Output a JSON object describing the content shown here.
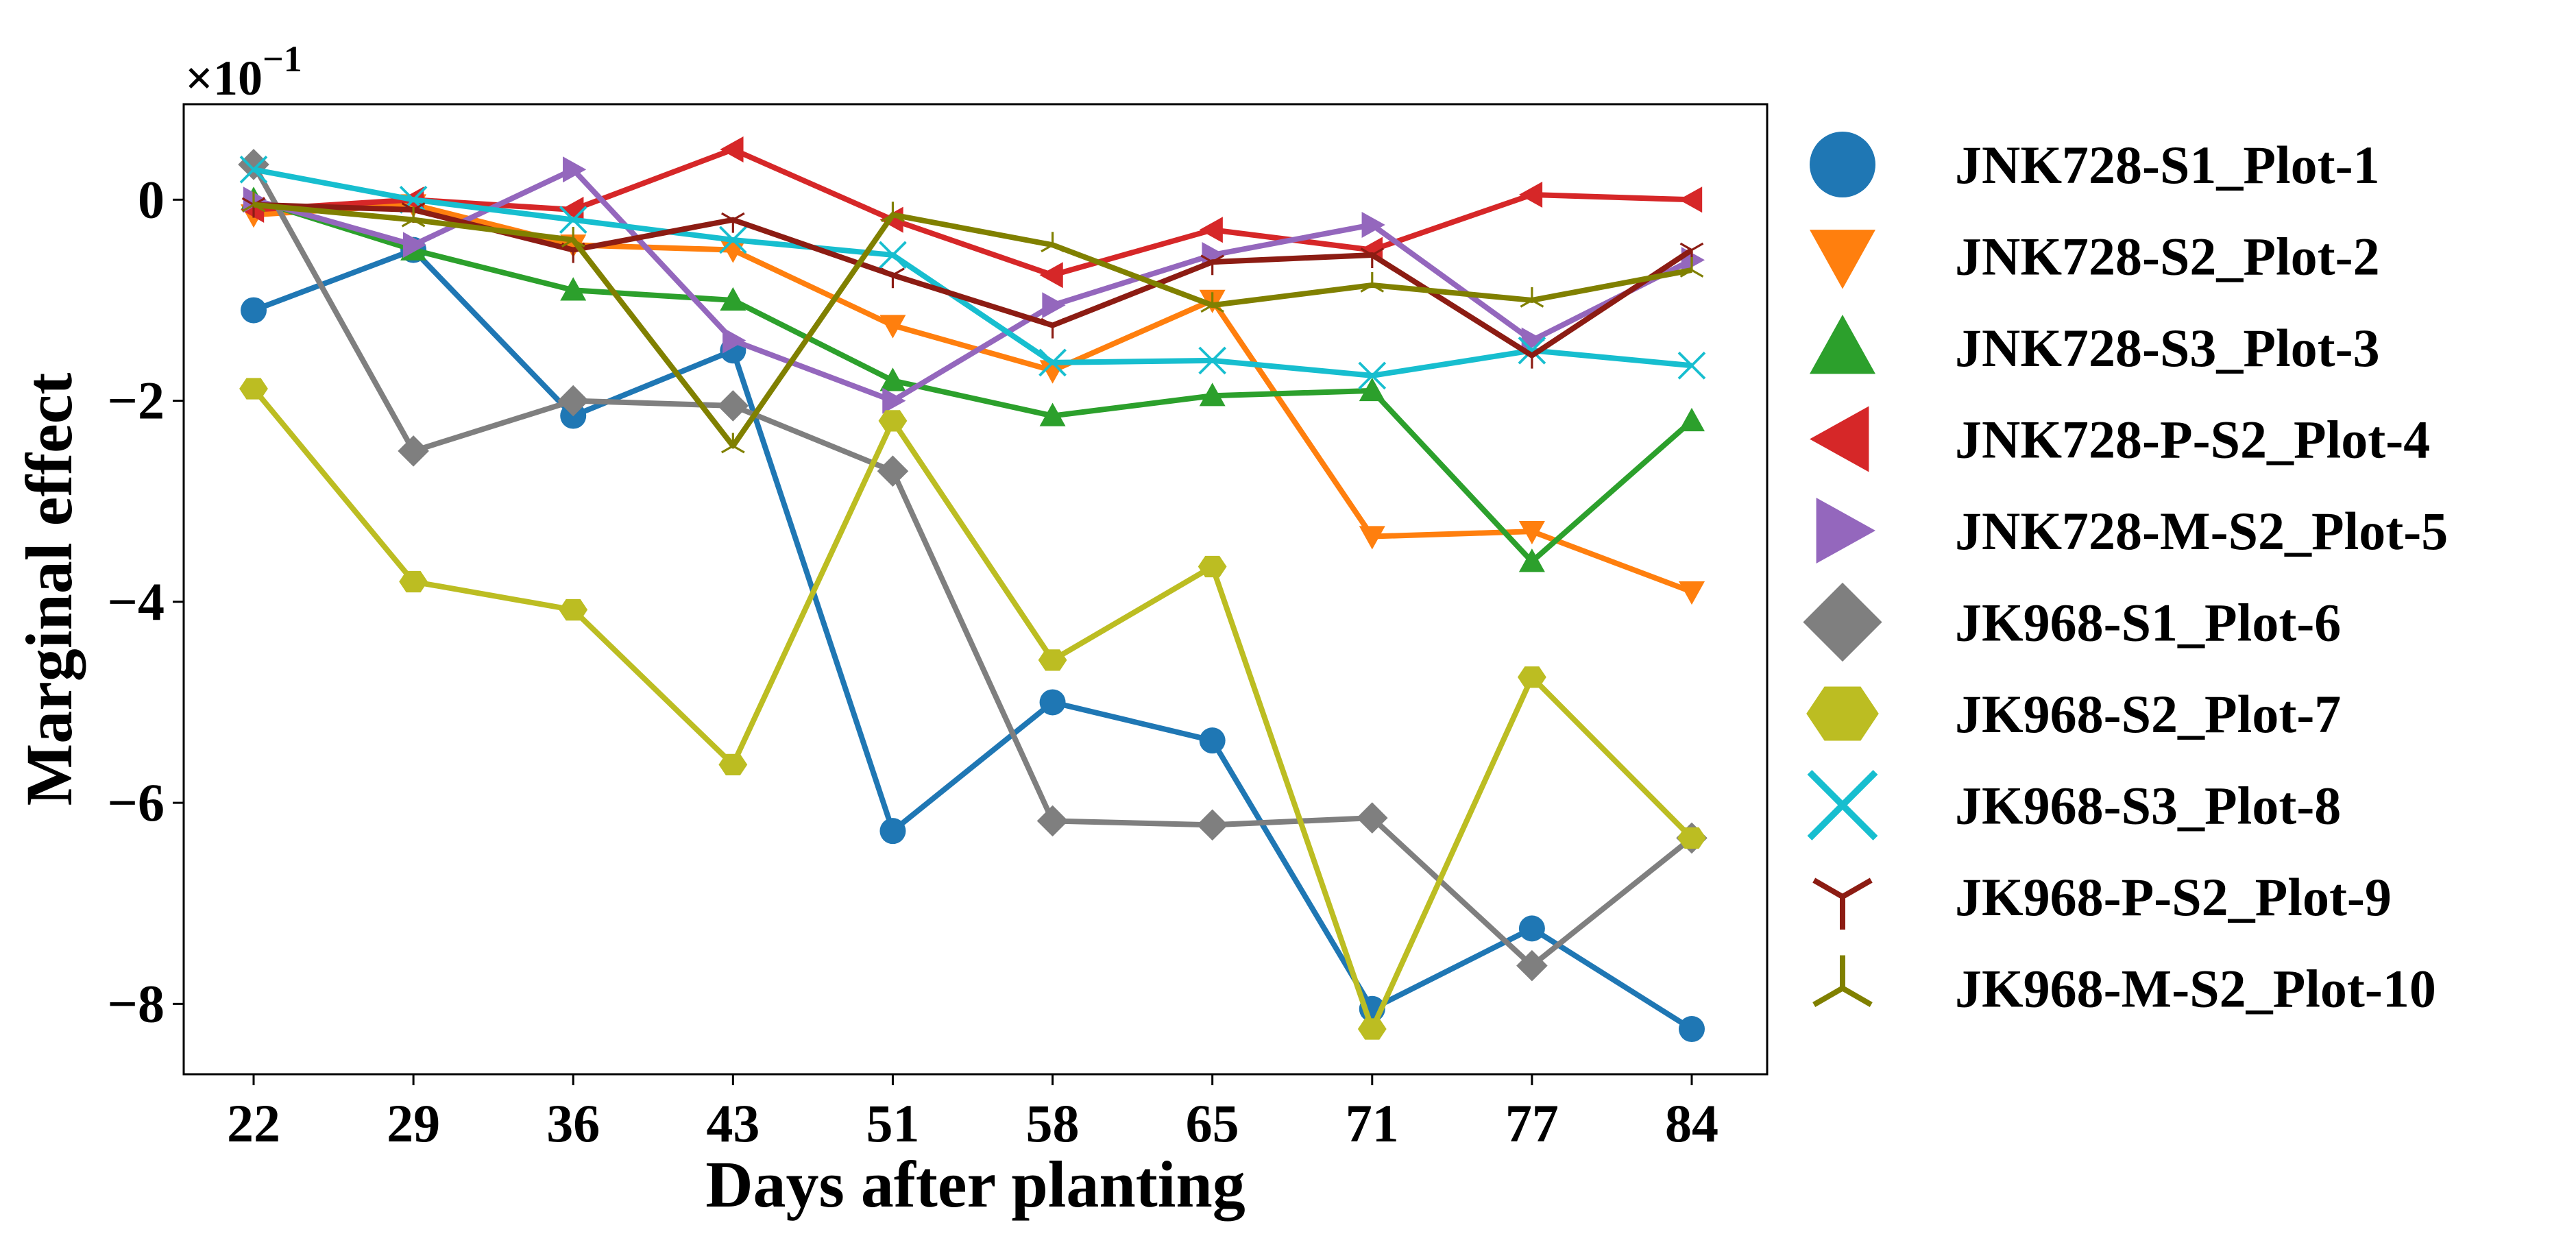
{
  "chart_data": {
    "type": "line",
    "title": "",
    "xlabel": "Days after planting",
    "ylabel": "Marginal effect",
    "y_scale_label": "×10",
    "y_scale_exponent": "−1",
    "categories": [
      "22",
      "29",
      "36",
      "43",
      "51",
      "58",
      "65",
      "71",
      "77",
      "84"
    ],
    "ylim": [
      -8.7,
      0.95
    ],
    "yticks": [
      0,
      -2,
      -4,
      -6,
      -8
    ],
    "ytick_labels": [
      "0",
      "−2",
      "−4",
      "−6",
      "−8"
    ],
    "grid": false,
    "legend_position": "right",
    "series": [
      {
        "name": "JNK728-S1_Plot-1",
        "color": "#1f77b4",
        "marker": "circle",
        "values": [
          -1.1,
          -0.5,
          -2.15,
          -1.5,
          -6.28,
          -5.0,
          -5.38,
          -8.05,
          -7.25,
          -8.25
        ]
      },
      {
        "name": "JNK728-S2_Plot-2",
        "color": "#ff7f0e",
        "marker": "triangle-down",
        "values": [
          -0.15,
          -0.05,
          -0.45,
          -0.5,
          -1.25,
          -1.7,
          -1.0,
          -3.35,
          -3.3,
          -3.9
        ]
      },
      {
        "name": "JNK728-S3_Plot-3",
        "color": "#2ca02c",
        "marker": "triangle-up",
        "values": [
          0.0,
          -0.5,
          -0.9,
          -1.0,
          -1.8,
          -2.15,
          -1.95,
          -1.9,
          -3.6,
          -2.2
        ]
      },
      {
        "name": "JNK728-P-S2_Plot-4",
        "color": "#d62728",
        "marker": "triangle-left",
        "values": [
          -0.1,
          0.0,
          -0.1,
          0.5,
          -0.2,
          -0.75,
          -0.3,
          -0.5,
          0.05,
          0.0
        ]
      },
      {
        "name": "JNK728-M-S2_Plot-5",
        "color": "#9467bd",
        "marker": "triangle-right",
        "values": [
          0.0,
          -0.45,
          0.3,
          -1.4,
          -2.0,
          -1.05,
          -0.55,
          -0.25,
          -1.4,
          -0.6
        ]
      },
      {
        "name": "JK968-S1_Plot-6",
        "color": "#7f7f7f",
        "marker": "diamond",
        "values": [
          0.35,
          -2.5,
          -2.0,
          -2.05,
          -2.7,
          -6.18,
          -6.22,
          -6.15,
          -7.62,
          -6.35
        ]
      },
      {
        "name": "JK968-S2_Plot-7",
        "color": "#bcbd22",
        "marker": "hexagon",
        "values": [
          -1.88,
          -3.8,
          -4.08,
          -5.62,
          -2.2,
          -4.58,
          -3.65,
          -8.25,
          -4.75,
          -6.35
        ]
      },
      {
        "name": "JK968-S3_Plot-8",
        "color": "#17becf",
        "marker": "x",
        "values": [
          0.3,
          0.0,
          -0.2,
          -0.4,
          -0.55,
          -1.62,
          -1.6,
          -1.75,
          -1.5,
          -1.65
        ]
      },
      {
        "name": "JK968-P-S2_Plot-9",
        "color": "#8c1c13",
        "marker": "tri-down",
        "values": [
          -0.05,
          -0.1,
          -0.5,
          -0.2,
          -0.75,
          -1.25,
          -0.62,
          -0.55,
          -1.55,
          -0.5
        ]
      },
      {
        "name": "JK968-M-S2_Plot-10",
        "color": "#808000",
        "marker": "tri-up",
        "values": [
          -0.05,
          -0.2,
          -0.4,
          -2.45,
          -0.15,
          -0.45,
          -1.05,
          -0.85,
          -1.0,
          -0.7
        ]
      }
    ]
  }
}
